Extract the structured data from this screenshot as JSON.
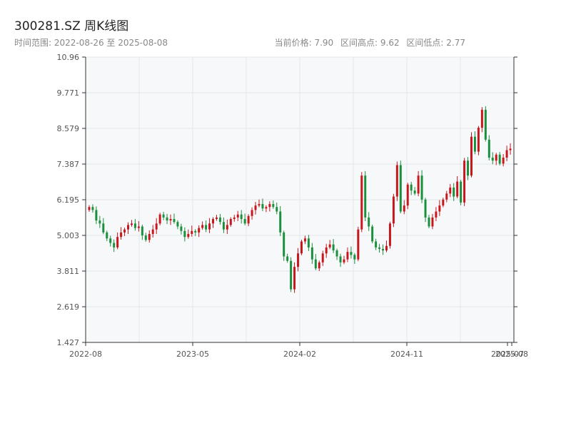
{
  "header": {
    "title": "300281.SZ 周K线图",
    "range_label": "时间范围: 2022-08-26 至 2025-08-08",
    "current_price": "当前价格: 7.90",
    "range_high": "区间高点: 9.62",
    "range_low": "区间低点: 2.77"
  },
  "colors": {
    "up": "#c8161d",
    "down": "#1a8f3c",
    "plot_bg": "#f6f8fa",
    "grid": "#e3e7ec",
    "axis": "#333333"
  },
  "chart_data": {
    "type": "candlestick",
    "title": "300281.SZ 周K线图",
    "ylim": [
      1.427,
      10.96
    ],
    "y_ticks": [
      "1.427",
      "2.619",
      "3.811",
      "5.003",
      "6.195",
      "7.387",
      "8.579",
      "9.771",
      "10.96"
    ],
    "x_ticks": [
      "2022-08",
      "2023-05",
      "2024-02",
      "2024-11",
      "2025-08",
      "2025-07"
    ],
    "x_range": [
      "2022-08-26",
      "2025-08-08"
    ],
    "grid": true,
    "legend": "none",
    "series": [
      {
        "x": "2022-08",
        "closes": [
          5.95,
          5.85,
          5.5,
          5.4,
          5.1,
          4.9,
          4.75,
          4.6,
          4.95,
          5.1,
          5.2,
          5.35,
          5.4,
          5.25,
          5.3,
          5.0,
          4.85,
          5.05,
          5.2,
          5.4,
          5.7,
          5.6,
          5.5,
          5.55,
          5.45,
          5.3,
          5.15,
          4.95,
          5.05,
          5.15
        ]
      },
      {
        "x": "2023-05",
        "closes": [
          5.1,
          5.25,
          5.35,
          5.2,
          5.4,
          5.55,
          5.6,
          5.45,
          5.2,
          5.35,
          5.55,
          5.6,
          5.7,
          5.55,
          5.4,
          5.65,
          5.85,
          6.0,
          6.05,
          5.9,
          5.95,
          6.05,
          5.95,
          5.8,
          5.1,
          4.3,
          4.15,
          3.2,
          3.95,
          4.4,
          4.8,
          4.9
        ]
      },
      {
        "x": "2024-02",
        "closes": [
          4.6,
          4.2,
          3.9,
          4.1,
          4.4,
          4.6,
          4.7,
          4.5,
          4.3,
          4.1,
          4.2,
          4.45,
          4.35,
          4.2,
          5.2,
          7.0,
          5.6,
          5.3,
          4.8,
          4.6,
          4.55,
          4.5,
          4.65,
          5.4,
          6.3,
          7.35,
          5.8,
          6.0,
          6.7,
          6.5,
          6.4,
          7.0
        ]
      },
      {
        "x": "2024-11",
        "closes": [
          6.2,
          5.6,
          5.3,
          5.6,
          5.8,
          6.0,
          6.2,
          6.4,
          6.6,
          6.3,
          6.8,
          6.1,
          7.5,
          7.0,
          8.3,
          7.8,
          8.6,
          9.2,
          8.2,
          7.6,
          7.5,
          7.7,
          7.4,
          7.6,
          7.85,
          7.9
        ]
      }
    ]
  }
}
